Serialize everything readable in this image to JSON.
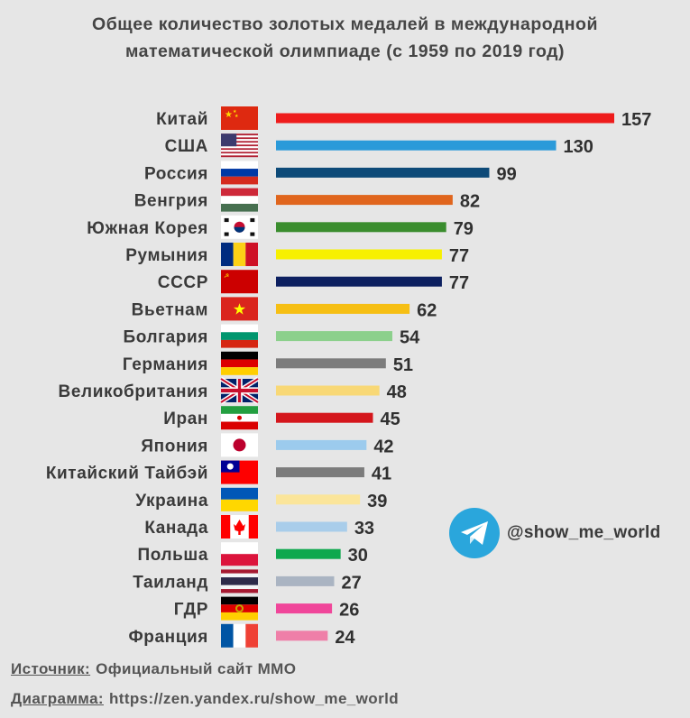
{
  "chart_data": {
    "type": "bar",
    "orientation": "horizontal",
    "title": "Общее количество золотых медалей в международной математической олимпиаде (с 1959 по 2019 год)",
    "xlabel": "",
    "ylabel": "",
    "xlim": [
      0,
      157
    ],
    "grid": false,
    "categories": [
      "Китай",
      "США",
      "Россия",
      "Венгрия",
      "Южная Корея",
      "Румыния",
      "СССР",
      "Вьетнам",
      "Болгария",
      "Германия",
      "Великобритания",
      "Иран",
      "Япония",
      "Китайский Тайбэй",
      "Украина",
      "Канада",
      "Польша",
      "Таиланд",
      "ГДР",
      "Франция"
    ],
    "values": [
      157,
      130,
      99,
      82,
      79,
      77,
      77,
      62,
      54,
      51,
      48,
      45,
      42,
      41,
      39,
      33,
      30,
      27,
      26,
      24
    ],
    "colors": [
      "#ee1c1c",
      "#2b9ad9",
      "#0d4a78",
      "#e0651d",
      "#3a8d2e",
      "#f7f000",
      "#0d2060",
      "#f6bf14",
      "#8cd08c",
      "#7c7c7c",
      "#f8d876",
      "#d4161c",
      "#9ccbed",
      "#7c7c7c",
      "#fbe59a",
      "#a9cdea",
      "#0ea84e",
      "#aab4c2",
      "#f0469a",
      "#ef7fa8"
    ],
    "flags": [
      "flag-china",
      "flag-usa",
      "flag-russia",
      "flag-hungary",
      "flag-south-korea",
      "flag-romania",
      "flag-ussr",
      "flag-vietnam",
      "flag-bulgaria",
      "flag-germany",
      "flag-uk",
      "flag-iran",
      "flag-japan",
      "flag-taiwan",
      "flag-ukraine",
      "flag-canada",
      "flag-poland",
      "flag-thailand",
      "flag-gdr",
      "flag-france"
    ]
  },
  "telegram": {
    "icon": "telegram-icon",
    "handle": "@show_me_world",
    "color": "#2aa6dc"
  },
  "footer": {
    "source_label": "Источник:",
    "source_text": "Официальный сайт ММО",
    "diagram_label": "Диаграмма:",
    "diagram_text": "https://zen.yandex.ru/show_me_world"
  }
}
